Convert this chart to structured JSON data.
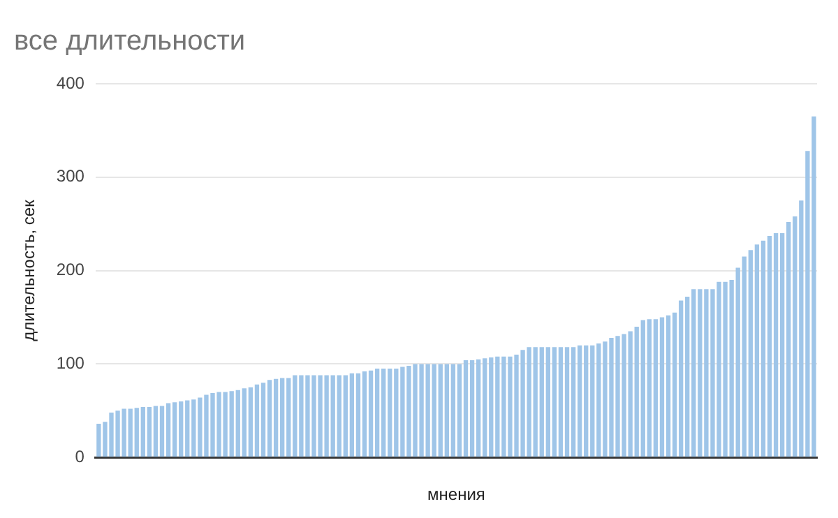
{
  "chart_data": {
    "type": "bar",
    "title": "все длительности",
    "xlabel": "мнения",
    "ylabel": "длительность, сек",
    "categories": [
      null,
      null,
      null,
      null,
      null,
      null,
      null,
      null,
      null,
      null,
      null,
      null,
      null,
      null,
      null,
      null,
      null,
      null,
      null,
      null,
      null,
      null,
      null,
      null,
      null,
      null,
      null,
      null,
      null,
      null,
      null,
      null,
      null,
      null,
      null,
      null,
      null,
      null,
      null,
      null,
      null,
      null,
      null,
      null,
      null,
      null,
      null,
      null,
      null,
      null,
      null,
      null,
      null,
      null,
      null,
      null,
      null,
      null,
      null,
      null,
      null,
      null,
      null,
      null,
      null,
      null,
      null,
      null,
      null,
      null,
      null,
      null,
      null,
      null,
      null,
      null,
      null,
      null,
      null,
      null,
      null,
      null,
      null,
      null,
      null,
      null,
      null,
      null,
      null,
      null,
      null,
      null,
      null,
      null,
      null,
      null,
      null,
      null,
      null,
      null,
      null,
      null,
      null,
      null,
      null,
      null,
      null,
      null,
      null,
      null,
      null,
      null,
      null,
      null
    ],
    "values": [
      36,
      38,
      48,
      50,
      52,
      52,
      53,
      54,
      54,
      55,
      55,
      58,
      59,
      60,
      61,
      62,
      64,
      67,
      69,
      70,
      70,
      71,
      72,
      74,
      75,
      78,
      80,
      83,
      84,
      85,
      85,
      88,
      88,
      88,
      88,
      88,
      88,
      88,
      88,
      88,
      90,
      90,
      92,
      93,
      95,
      95,
      95,
      95,
      97,
      98,
      100,
      100,
      100,
      100,
      100,
      100,
      100,
      100,
      104,
      104,
      105,
      106,
      107,
      108,
      108,
      108,
      110,
      115,
      118,
      118,
      118,
      118,
      118,
      118,
      118,
      118,
      120,
      120,
      120,
      122,
      124,
      128,
      130,
      132,
      135,
      140,
      147,
      148,
      148,
      150,
      152,
      155,
      168,
      172,
      180,
      180,
      180,
      180,
      188,
      188,
      190,
      203,
      215,
      222,
      228,
      232,
      237,
      240,
      240,
      252,
      258,
      275,
      328,
      365
    ],
    "color": "#9fc5e8",
    "ylim": [
      0,
      400
    ],
    "yticks": [
      0,
      100,
      200,
      300,
      400
    ],
    "grid": "y",
    "tick_labels": "y"
  }
}
